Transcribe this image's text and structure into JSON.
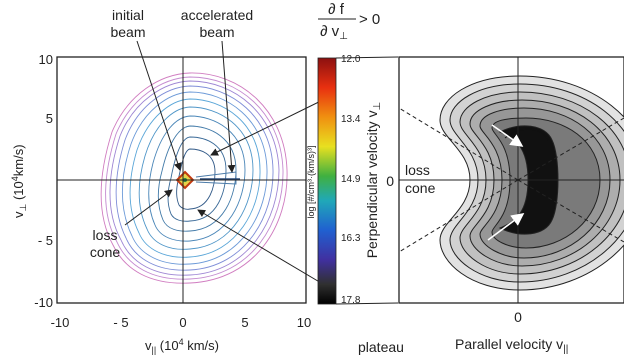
{
  "left_plot": {
    "x_ticks": [
      "-10",
      "- 5",
      "0",
      "5",
      "10"
    ],
    "y_ticks": [
      "10",
      "5",
      "- 5",
      "-10"
    ],
    "x_label": "v",
    "x_label_sub": "||",
    "x_label_rest": " (10",
    "x_label_sup": "4",
    "x_label_end": " km/s)",
    "y_label": "v",
    "y_label_sub": "⊥",
    "y_label_mid": " (10",
    "y_label_sup": "4",
    "y_label_end": "km/s)",
    "annotations": {
      "initial_beam_1": "initial",
      "initial_beam_2": "beam",
      "accelerated_beam_1": "accelerated",
      "accelerated_beam_2": "beam",
      "loss_cone_1": "loss",
      "loss_cone_2": "cone"
    }
  },
  "colorbar": {
    "ticks": [
      "12.0",
      "13.4",
      "14.9",
      "16.3",
      "17.8"
    ],
    "label": "log [#/cm³·(km/s)³]",
    "colors": [
      "#a01818",
      "#e87810",
      "#e8e020",
      "#30a040",
      "#20a0b0",
      "#2060d0",
      "#3040a0",
      "#202020"
    ]
  },
  "condition": {
    "numerator": "∂ f",
    "denominator": "∂ v",
    "denominator_sub": "⊥",
    "relation": "> 0"
  },
  "plateau_label": "plateau",
  "right_plot": {
    "x_tick": "0",
    "y_tick": "0",
    "x_label": "Parallel velocity v",
    "x_label_sub": "||",
    "y_label": "Perpendicular velocity v",
    "y_label_sub": "⊥",
    "loss_cone_1": "loss",
    "loss_cone_2": "cone"
  }
}
